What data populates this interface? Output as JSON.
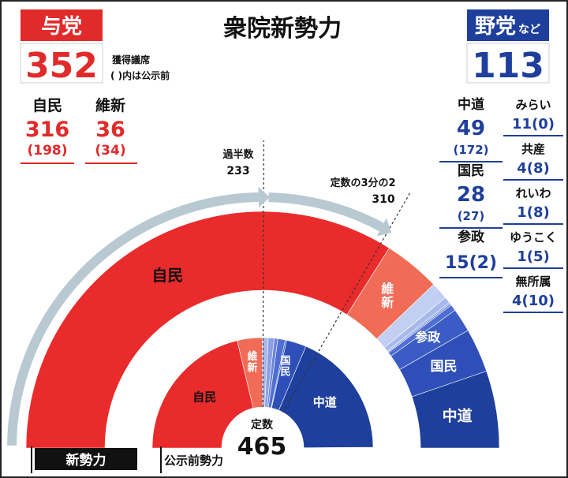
{
  "title": "衆院新勢力",
  "ruling": {
    "label": "与党",
    "total": "352",
    "note_line1": "獲得議席",
    "note_line2": "( )内は公示前",
    "parties": [
      {
        "name": "自民",
        "seats": "316",
        "prev": "(198)"
      },
      {
        "name": "維新",
        "seats": "36",
        "prev": "(34)"
      }
    ]
  },
  "opposition": {
    "label_main": "野党",
    "label_suffix": "など",
    "total": "113",
    "parties": [
      {
        "name": "中道",
        "seats": "49",
        "prev": "(172)"
      },
      {
        "name": "国民",
        "seats": "28",
        "prev": "(27)"
      },
      {
        "name": "参政",
        "seats": "15",
        "prev": "(2)"
      },
      {
        "name": "みらい",
        "seats": "11",
        "prev": "(0)"
      },
      {
        "name": "共産",
        "seats": "4",
        "prev": "(8)"
      },
      {
        "name": "れいわ",
        "seats": "1",
        "prev": "(8)"
      },
      {
        "name": "ゆうこく",
        "seats": "1",
        "prev": "(5)"
      },
      {
        "name": "無所属",
        "seats": "4",
        "prev": "(10)"
      }
    ]
  },
  "markers": {
    "majority_label": "過半数",
    "majority_value": "233",
    "two_thirds_label": "定数の3分の2",
    "two_thirds_value": "310"
  },
  "center": {
    "label": "定数",
    "value": "465"
  },
  "legend": {
    "new": "新勢力",
    "old": "公示前勢力"
  },
  "colors": {
    "ruling_accent": "#e12a2a",
    "opposition_accent": "#1f3f9c",
    "ldp": "#ea2b2b",
    "ishin": "#f06c57",
    "chudo": "#1f3f9c",
    "kokumin": "#2f4fb8",
    "sansei": "#3a5cc4",
    "others": [
      "#4f6ed0",
      "#6a84da",
      "#8aa0e2",
      "#a7b8ea",
      "#c2cff0"
    ]
  },
  "chart_data": {
    "type": "pie",
    "subtype": "parliament-semicircle",
    "total_seats": 465,
    "majority": 233,
    "two_thirds": 310,
    "series": [
      {
        "name": "新勢力",
        "categories": [
          "自民",
          "維新",
          "みらい",
          "共産",
          "れいわ",
          "ゆうこく",
          "無所属",
          "参政",
          "国民",
          "中道"
        ],
        "values": [
          316,
          36,
          11,
          4,
          1,
          1,
          4,
          15,
          28,
          49
        ]
      },
      {
        "name": "公示前勢力",
        "categories": [
          "自民",
          "維新",
          "みらい",
          "共産",
          "れいわ",
          "ゆうこく",
          "無所属",
          "参政",
          "国民",
          "中道"
        ],
        "values": [
          198,
          34,
          0,
          8,
          8,
          5,
          10,
          2,
          27,
          172
        ]
      }
    ],
    "slice_colors": [
      "#ea2b2b",
      "#f06c57",
      "#c2cff0",
      "#a7b8ea",
      "#8aa0e2",
      "#6a84da",
      "#4f6ed0",
      "#3a5cc4",
      "#2f4fb8",
      "#1f3f9c"
    ]
  }
}
